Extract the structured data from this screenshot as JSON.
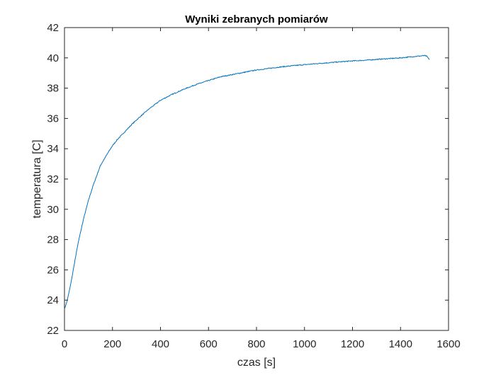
{
  "chart_data": {
    "type": "line",
    "title": "Wyniki zebranych pomiarów",
    "xlabel": "czas [s]",
    "ylabel": "temperatura [C]",
    "xlim": [
      0,
      1600
    ],
    "ylim": [
      22,
      42
    ],
    "xticks": [
      0,
      200,
      400,
      600,
      800,
      1000,
      1200,
      1400,
      1600
    ],
    "yticks": [
      22,
      24,
      26,
      28,
      30,
      32,
      34,
      36,
      38,
      40,
      42
    ],
    "xtick_labels": [
      "0",
      "200",
      "400",
      "600",
      "800",
      "1000",
      "1200",
      "1400",
      "1600"
    ],
    "ytick_labels": [
      "22",
      "24",
      "26",
      "28",
      "30",
      "32",
      "34",
      "36",
      "38",
      "40",
      "42"
    ],
    "grid": false,
    "box": true,
    "series": [
      {
        "color": "#0072BD",
        "x": [
          0,
          10,
          20,
          30,
          40,
          50,
          60,
          80,
          100,
          120,
          150,
          180,
          200,
          220,
          250,
          280,
          300,
          350,
          400,
          450,
          500,
          550,
          600,
          650,
          700,
          750,
          800,
          850,
          900,
          950,
          1000,
          1050,
          1100,
          1150,
          1200,
          1250,
          1300,
          1350,
          1400,
          1450,
          1480,
          1500,
          1510,
          1520
        ],
        "y": [
          23.4,
          23.9,
          24.6,
          25.4,
          26.3,
          27.2,
          28.0,
          29.4,
          30.6,
          31.6,
          32.9,
          33.7,
          34.2,
          34.6,
          35.1,
          35.6,
          35.9,
          36.6,
          37.2,
          37.6,
          37.95,
          38.25,
          38.5,
          38.75,
          38.9,
          39.05,
          39.2,
          39.3,
          39.4,
          39.48,
          39.55,
          39.62,
          39.68,
          39.74,
          39.8,
          39.84,
          39.9,
          39.95,
          40.0,
          40.08,
          40.12,
          40.15,
          40.1,
          39.88
        ]
      }
    ]
  }
}
